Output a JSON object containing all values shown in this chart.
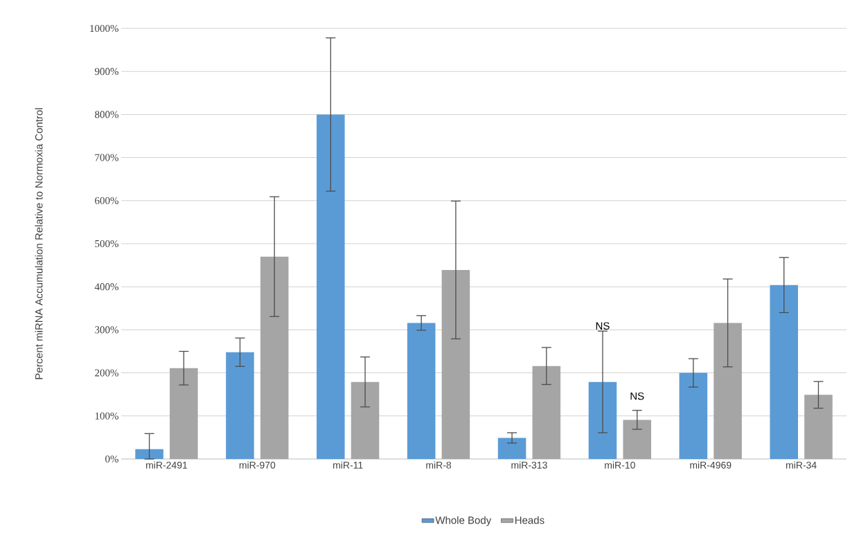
{
  "chart_data": {
    "type": "bar",
    "ylabel": "Percent miRNA Accumulation Relative to Normoxia Control",
    "categories": [
      "miR-2491",
      "miR-970",
      "miR-11",
      "miR-8",
      "miR-313",
      "miR-10",
      "miR-4969",
      "miR-34"
    ],
    "series": [
      {
        "name": "Whole Body",
        "color": "#5b9bd5",
        "values": [
          23,
          248,
          800,
          316,
          49,
          179,
          200,
          404
        ],
        "errors": [
          [
            0,
            59
          ],
          33,
          178,
          17,
          12,
          118,
          33,
          64
        ]
      },
      {
        "name": "Heads",
        "color": "#a5a5a5",
        "values": [
          211,
          470,
          179,
          439,
          216,
          91,
          316,
          149
        ],
        "errors": [
          39,
          139,
          58,
          160,
          43,
          22,
          102,
          31
        ]
      }
    ],
    "ylim": [
      0,
      1000
    ],
    "yticks": [
      {
        "value": 0,
        "label": "0%"
      },
      {
        "value": 100,
        "label": "100%"
      },
      {
        "value": 200,
        "label": "200%"
      },
      {
        "value": 300,
        "label": "300%"
      },
      {
        "value": 400,
        "label": "400%"
      },
      {
        "value": 500,
        "label": "500%"
      },
      {
        "value": 600,
        "label": "600%"
      },
      {
        "value": 700,
        "label": "700%"
      },
      {
        "value": 800,
        "label": "800%"
      },
      {
        "value": 900,
        "label": "900%"
      },
      {
        "value": 1000,
        "label": "1000%"
      }
    ],
    "grid": "y",
    "legend": "bottom",
    "annotations": [
      "NS",
      {
        "text": "NS",
        "x": "miR-10",
        "y": 113
      }
    ]
  }
}
